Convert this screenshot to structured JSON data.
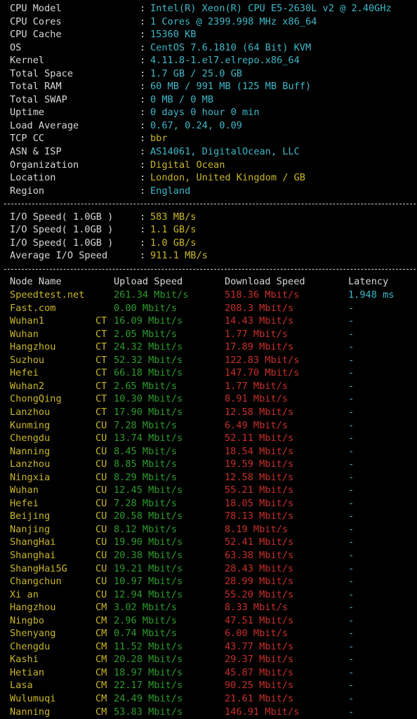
{
  "colors": {
    "background": "#000000",
    "label": "#d8d8d8",
    "cyan": "#3fb8c8",
    "yellow": "#c8b62a",
    "green": "#2e9a2e",
    "red": "#c8302a"
  },
  "sysinfo": [
    {
      "key": "CPU Model",
      "value": "Intel(R) Xeon(R) CPU E5-2630L v2 @ 2.40GHz",
      "color": "cyan"
    },
    {
      "key": "CPU Cores",
      "value": "1 Cores @ 2399.998 MHz x86_64",
      "color": "cyan"
    },
    {
      "key": "CPU Cache",
      "value": "15360 KB",
      "color": "cyan"
    },
    {
      "key": "OS",
      "value": "CentOS 7.6.1810 (64 Bit) KVM",
      "color": "cyan"
    },
    {
      "key": "Kernel",
      "value": "4.11.8-1.el7.elrepo.x86_64",
      "color": "cyan"
    },
    {
      "key": "Total Space",
      "value": "1.7 GB / 25.0 GB",
      "color": "cyan"
    },
    {
      "key": "Total RAM",
      "value": "60 MB / 991 MB (125 MB Buff)",
      "color": "cyan"
    },
    {
      "key": "Total SWAP",
      "value": "0 MB / 0 MB",
      "color": "cyan"
    },
    {
      "key": "Uptime",
      "value": "0 days 0 hour 0 min",
      "color": "cyan"
    },
    {
      "key": "Load Average",
      "value": "0.67, 0.24, 0.09",
      "color": "cyan"
    },
    {
      "key": "TCP CC",
      "value": "bbr",
      "color": "yellow"
    },
    {
      "key": "ASN & ISP",
      "value": "AS14061, DigitalOcean, LLC",
      "color": "cyan"
    },
    {
      "key": "Organization",
      "value": "Digital Ocean",
      "color": "yellow"
    },
    {
      "key": "Location",
      "value": "London, United Kingdom / GB",
      "color": "yellow"
    },
    {
      "key": "Region",
      "value": "England",
      "color": "cyan"
    }
  ],
  "separator": ":",
  "io": [
    {
      "key": "I/O Speed( 1.0GB )",
      "value": "583 MB/s"
    },
    {
      "key": "I/O Speed( 1.0GB )",
      "value": "1.1 GB/s"
    },
    {
      "key": "I/O Speed( 1.0GB )",
      "value": "1.0 GB/s"
    },
    {
      "key": "Average I/O Speed",
      "value": "911.1 MB/s"
    }
  ],
  "speed_header": {
    "node": "Node Name",
    "upload": "Upload Speed",
    "download": "Download Speed",
    "latency": "Latency"
  },
  "speed_rows": [
    {
      "node": "Speedtest.net",
      "isp": "",
      "upload": "261.34 Mbit/s",
      "download": "518.36 Mbit/s",
      "latency": "1.948 ms"
    },
    {
      "node": "Fast.com",
      "isp": "",
      "upload": "0.00 Mbit/s",
      "download": "208.3 Mbit/s",
      "latency": "-"
    },
    {
      "node": "Wuhan1",
      "isp": "CT",
      "upload": "16.09 Mbit/s",
      "download": "14.43 Mbit/s",
      "latency": "-"
    },
    {
      "node": "Wuhan",
      "isp": "CT",
      "upload": "2.05 Mbit/s",
      "download": "1.77 Mbit/s",
      "latency": "-"
    },
    {
      "node": "Hangzhou",
      "isp": "CT",
      "upload": "24.32 Mbit/s",
      "download": "17.89 Mbit/s",
      "latency": "-"
    },
    {
      "node": "Suzhou",
      "isp": "CT",
      "upload": "52.32 Mbit/s",
      "download": "122.83 Mbit/s",
      "latency": "-"
    },
    {
      "node": "Hefei",
      "isp": "CT",
      "upload": "66.18 Mbit/s",
      "download": "147.70 Mbit/s",
      "latency": "-"
    },
    {
      "node": "Wuhan2",
      "isp": "CT",
      "upload": "2.65 Mbit/s",
      "download": "1.77 Mbit/s",
      "latency": "-"
    },
    {
      "node": "ChongQing",
      "isp": "CT",
      "upload": "10.30 Mbit/s",
      "download": "8.91 Mbit/s",
      "latency": "-"
    },
    {
      "node": "Lanzhou",
      "isp": "CT",
      "upload": "17.90 Mbit/s",
      "download": "12.58 Mbit/s",
      "latency": "-"
    },
    {
      "node": "Kunming",
      "isp": "CU",
      "upload": "7.28 Mbit/s",
      "download": "6.49 Mbit/s",
      "latency": "-"
    },
    {
      "node": "Chengdu",
      "isp": "CU",
      "upload": "13.74 Mbit/s",
      "download": "52.11 Mbit/s",
      "latency": "-"
    },
    {
      "node": "Nanning",
      "isp": "CU",
      "upload": "8.45 Mbit/s",
      "download": "18.54 Mbit/s",
      "latency": "-"
    },
    {
      "node": "Lanzhou",
      "isp": "CU",
      "upload": "8.85 Mbit/s",
      "download": "19.59 Mbit/s",
      "latency": "-"
    },
    {
      "node": "Ningxia",
      "isp": "CU",
      "upload": "8.29 Mbit/s",
      "download": "12.58 Mbit/s",
      "latency": "-"
    },
    {
      "node": "Wuhan",
      "isp": "CU",
      "upload": "12.45 Mbit/s",
      "download": "55.21 Mbit/s",
      "latency": "-"
    },
    {
      "node": "Hefei",
      "isp": "CU",
      "upload": "7.28 Mbit/s",
      "download": "18.05 Mbit/s",
      "latency": "-"
    },
    {
      "node": "Beijing",
      "isp": "CU",
      "upload": "20.58 Mbit/s",
      "download": "78.13 Mbit/s",
      "latency": "-"
    },
    {
      "node": "Nanjing",
      "isp": "CU",
      "upload": "8.12 Mbit/s",
      "download": "8.19 Mbit/s",
      "latency": "-"
    },
    {
      "node": "ShangHai",
      "isp": "CU",
      "upload": "19.90 Mbit/s",
      "download": "52.41 Mbit/s",
      "latency": "-"
    },
    {
      "node": "Shanghai",
      "isp": "CU",
      "upload": "20.38 Mbit/s",
      "download": "63.38 Mbit/s",
      "latency": "-"
    },
    {
      "node": "ShangHai5G",
      "isp": "CU",
      "upload": "19.21 Mbit/s",
      "download": "28.43 Mbit/s",
      "latency": "-"
    },
    {
      "node": "Changchun",
      "isp": "CU",
      "upload": "10.97 Mbit/s",
      "download": "28.99 Mbit/s",
      "latency": "-"
    },
    {
      "node": "Xi an",
      "isp": "CU",
      "upload": "12.94 Mbit/s",
      "download": "55.20 Mbit/s",
      "latency": "-"
    },
    {
      "node": "Hangzhou",
      "isp": "CM",
      "upload": "3.02 Mbit/s",
      "download": "8.33 Mbit/s",
      "latency": "-"
    },
    {
      "node": "Ningbo",
      "isp": "CM",
      "upload": "2.96 Mbit/s",
      "download": "47.51 Mbit/s",
      "latency": "-"
    },
    {
      "node": "Shenyang",
      "isp": "CM",
      "upload": "0.74 Mbit/s",
      "download": "6.00 Mbit/s",
      "latency": "-"
    },
    {
      "node": "Chengdu",
      "isp": "CM",
      "upload": "11.52 Mbit/s",
      "download": "43.77 Mbit/s",
      "latency": "-"
    },
    {
      "node": "Kashi",
      "isp": "CM",
      "upload": "20.28 Mbit/s",
      "download": "29.37 Mbit/s",
      "latency": "-"
    },
    {
      "node": "Hetian",
      "isp": "CM",
      "upload": "18.97 Mbit/s",
      "download": "45.87 Mbit/s",
      "latency": "-"
    },
    {
      "node": "Lasa",
      "isp": "CM",
      "upload": "22.17 Mbit/s",
      "download": "90.25 Mbit/s",
      "latency": "-"
    },
    {
      "node": "Wulumuqi",
      "isp": "CM",
      "upload": "24.49 Mbit/s",
      "download": "21.61 Mbit/s",
      "latency": "-"
    },
    {
      "node": "Nanning",
      "isp": "CM",
      "upload": "53.83 Mbit/s",
      "download": "146.91 Mbit/s",
      "latency": "-"
    }
  ]
}
